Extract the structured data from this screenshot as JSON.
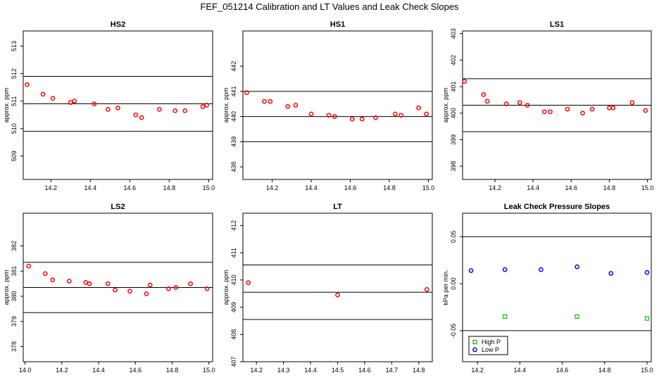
{
  "figure": {
    "title": "FEF_051214  Calibration and LT Values and Leak Check Slopes"
  },
  "chart_data": [
    {
      "type": "scatter",
      "title": "HS2",
      "xlabel": "",
      "ylabel": "approx. ppm",
      "xlim": [
        14.06,
        15.02
      ],
      "ylim": [
        508.15,
        513.55
      ],
      "xticks": [
        14.2,
        14.4,
        14.6,
        14.8,
        15.0
      ],
      "xtick_labels": [
        "14.2",
        "14.4",
        "14.6",
        "14.8",
        "15.0"
      ],
      "yticks": [
        509,
        510,
        511,
        512,
        513
      ],
      "ytick_labels": [
        "509",
        "510",
        "511",
        "512",
        "513"
      ],
      "hlines": [
        510.9,
        511.9,
        509.9
      ],
      "series": [
        {
          "color": "#ff0000",
          "marker": "circle",
          "x": [
            14.08,
            14.16,
            14.21,
            14.3,
            14.32,
            14.42,
            14.49,
            14.54,
            14.63,
            14.66,
            14.75,
            14.83,
            14.88,
            14.97,
            14.99
          ],
          "y": [
            511.6,
            511.25,
            511.1,
            510.95,
            511.0,
            510.9,
            510.7,
            510.75,
            510.5,
            510.4,
            510.7,
            510.65,
            510.65,
            510.8,
            510.85
          ]
        }
      ]
    },
    {
      "type": "scatter",
      "title": "HS1",
      "xlabel": "",
      "ylabel": "approx. ppm",
      "xlim": [
        14.05,
        15.02
      ],
      "ylim": [
        437.5,
        443.4
      ],
      "xticks": [
        14.2,
        14.4,
        14.6,
        14.8,
        15.0
      ],
      "xtick_labels": [
        "14.2",
        "14.4",
        "14.6",
        "14.8",
        "15.0"
      ],
      "yticks": [
        438,
        439,
        440,
        441,
        442
      ],
      "ytick_labels": [
        "438",
        "439",
        "440",
        "441",
        "442"
      ],
      "hlines": [
        440.0,
        441.0,
        439.0
      ],
      "series": [
        {
          "color": "#ff0000",
          "marker": "circle",
          "x": [
            14.07,
            14.16,
            14.19,
            14.28,
            14.32,
            14.4,
            14.49,
            14.52,
            14.61,
            14.66,
            14.73,
            14.83,
            14.86,
            14.95,
            14.99
          ],
          "y": [
            440.95,
            440.6,
            440.6,
            440.4,
            440.45,
            440.1,
            440.05,
            440.0,
            439.9,
            439.9,
            439.95,
            440.1,
            440.05,
            440.35,
            440.1
          ]
        }
      ]
    },
    {
      "type": "scatter",
      "title": "LS1",
      "xlabel": "",
      "ylabel": "approx. ppm",
      "xlim": [
        14.03,
        15.02
      ],
      "ylim": [
        397.5,
        403.1
      ],
      "xticks": [
        14.2,
        14.4,
        14.6,
        14.8,
        15.0
      ],
      "xtick_labels": [
        "14.2",
        "14.4",
        "14.6",
        "14.8",
        "15.0"
      ],
      "yticks": [
        398,
        399,
        400,
        401,
        402,
        403
      ],
      "ytick_labels": [
        "398",
        "399",
        "400",
        "401",
        "402",
        "403"
      ],
      "hlines": [
        400.3,
        401.3,
        399.3
      ],
      "series": [
        {
          "color": "#ff0000",
          "marker": "circle",
          "x": [
            14.04,
            14.14,
            14.16,
            14.26,
            14.33,
            14.37,
            14.46,
            14.49,
            14.58,
            14.66,
            14.71,
            14.8,
            14.82,
            14.92,
            14.99
          ],
          "y": [
            401.2,
            400.7,
            400.45,
            400.35,
            400.4,
            400.3,
            400.05,
            400.05,
            400.15,
            400.0,
            400.15,
            400.2,
            400.2,
            400.4,
            400.1
          ]
        }
      ]
    },
    {
      "type": "scatter",
      "title": "LS2",
      "xlabel": "",
      "ylabel": "approx. ppm",
      "xlim": [
        13.99,
        15.02
      ],
      "ylim": [
        377.4,
        383.3
      ],
      "xticks": [
        14.0,
        14.2,
        14.4,
        14.6,
        14.8,
        15.0
      ],
      "xtick_labels": [
        "14.0",
        "14.2",
        "14.4",
        "14.6",
        "14.8",
        "15.0"
      ],
      "yticks": [
        378,
        379,
        380,
        381,
        382
      ],
      "ytick_labels": [
        "378",
        "379",
        "380",
        "381",
        "382"
      ],
      "hlines": [
        380.35,
        381.35,
        379.35
      ],
      "series": [
        {
          "color": "#ff0000",
          "marker": "circle",
          "x": [
            14.02,
            14.11,
            14.15,
            14.24,
            14.33,
            14.35,
            14.45,
            14.49,
            14.57,
            14.66,
            14.68,
            14.78,
            14.82,
            14.9,
            14.99
          ],
          "y": [
            381.2,
            380.9,
            380.65,
            380.6,
            380.55,
            380.5,
            380.5,
            380.25,
            380.2,
            380.1,
            380.45,
            380.3,
            380.35,
            380.5,
            380.3
          ]
        }
      ]
    },
    {
      "type": "scatter",
      "title": "LT",
      "xlabel": "",
      "ylabel": "approx. ppm",
      "xlim": [
        14.15,
        14.85
      ],
      "ylim": [
        407.0,
        412.45
      ],
      "xticks": [
        14.2,
        14.3,
        14.4,
        14.5,
        14.6,
        14.7,
        14.8
      ],
      "xtick_labels": [
        "14.2",
        "14.3",
        "14.4",
        "14.5",
        "14.6",
        "14.7",
        "14.8"
      ],
      "yticks": [
        407,
        408,
        409,
        410,
        411,
        412
      ],
      "ytick_labels": [
        "407",
        "408",
        "409",
        "410",
        "411",
        "412"
      ],
      "hlines": [
        409.55,
        410.55,
        408.55
      ],
      "series": [
        {
          "color": "#ff0000",
          "marker": "circle",
          "x": [
            14.17,
            14.5,
            14.83
          ],
          "y": [
            409.9,
            409.45,
            409.65
          ]
        }
      ]
    },
    {
      "type": "scatter",
      "title": "Leak Check Pressure Slopes",
      "xlabel": "",
      "ylabel": "kPa per min.",
      "xlim": [
        14.13,
        15.02
      ],
      "ylim": [
        -0.083,
        0.075
      ],
      "xticks": [
        14.2,
        14.4,
        14.6,
        14.8,
        15.0
      ],
      "xtick_labels": [
        "14.2",
        "14.4",
        "14.6",
        "14.8",
        "15.0"
      ],
      "yticks": [
        -0.05,
        0.0,
        0.05
      ],
      "ytick_labels": [
        "-0.05",
        "0.00",
        "0.05"
      ],
      "hlines": [
        0.05,
        -0.05
      ],
      "legend": {
        "position": "bottom-left",
        "entries": [
          "High P",
          "Low P"
        ]
      },
      "series": [
        {
          "name": "High P",
          "color": "#00c000",
          "marker": "square",
          "x": [
            14.33,
            14.67,
            15.0
          ],
          "y": [
            -0.035,
            -0.035,
            -0.037
          ]
        },
        {
          "name": "Low P",
          "color": "#0000ff",
          "marker": "circle",
          "x": [
            14.17,
            14.33,
            14.5,
            14.67,
            14.83,
            15.0
          ],
          "y": [
            0.014,
            0.015,
            0.015,
            0.018,
            0.011,
            0.012
          ]
        }
      ]
    }
  ]
}
